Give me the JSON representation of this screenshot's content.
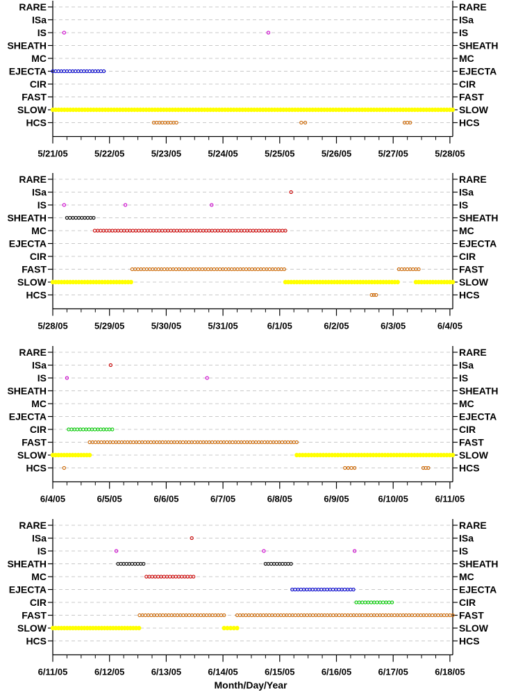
{
  "chart_data": {
    "type": "scatter",
    "xlabel": "Month/Day/Year",
    "categories": [
      "RARE",
      "ISa",
      "IS",
      "SHEATH",
      "MC",
      "EJECTA",
      "CIR",
      "FAST",
      "SLOW",
      "HCS"
    ],
    "colors": {
      "ISa": "#cc0000",
      "IS": "#cc00cc",
      "SHEATH": "#000000",
      "MC": "#cc0000",
      "EJECTA": "#0000cc",
      "CIR": "#00cc00",
      "FAST": "#cc6600",
      "SLOW": "#ffff00",
      "HCS": "#cc6600"
    },
    "panels": [
      {
        "x_ticks": [
          "5/21/05",
          "5/22/05",
          "5/23/05",
          "5/24/05",
          "5/25/05",
          "5/26/05",
          "5/27/05",
          "5/28/05"
        ],
        "xlim": [
          0,
          7.05
        ],
        "series": [
          {
            "category": "IS",
            "segments": [
              [
                0.2,
                0.2
              ],
              [
                3.8,
                3.8
              ]
            ]
          },
          {
            "category": "EJECTA",
            "segments": [
              [
                0.0,
                0.9
              ]
            ]
          },
          {
            "category": "SLOW",
            "segments": [
              [
                0.0,
                7.05
              ]
            ]
          },
          {
            "category": "HCS",
            "segments": [
              [
                1.78,
                2.18
              ],
              [
                4.38,
                4.45
              ],
              [
                6.2,
                6.3
              ]
            ]
          }
        ]
      },
      {
        "x_ticks": [
          "5/28/05",
          "5/29/05",
          "5/30/05",
          "5/31/05",
          "6/1/05",
          "6/2/05",
          "6/3/05",
          "6/4/05"
        ],
        "xlim": [
          0,
          7.05
        ],
        "series": [
          {
            "category": "ISa",
            "segments": [
              [
                4.2,
                4.2
              ]
            ]
          },
          {
            "category": "IS",
            "segments": [
              [
                0.2,
                0.2
              ],
              [
                1.28,
                1.28
              ],
              [
                2.8,
                2.8
              ]
            ]
          },
          {
            "category": "SHEATH",
            "segments": [
              [
                0.25,
                0.72
              ]
            ]
          },
          {
            "category": "MC",
            "segments": [
              [
                0.74,
                4.1
              ]
            ]
          },
          {
            "category": "FAST",
            "segments": [
              [
                1.4,
                4.08
              ],
              [
                6.1,
                6.45
              ]
            ]
          },
          {
            "category": "SLOW",
            "segments": [
              [
                0.0,
                1.38
              ],
              [
                4.1,
                6.08
              ],
              [
                6.4,
                7.05
              ]
            ]
          },
          {
            "category": "HCS",
            "segments": [
              [
                5.62,
                5.7
              ]
            ]
          }
        ]
      },
      {
        "x_ticks": [
          "6/4/05",
          "6/5/05",
          "6/6/05",
          "6/7/05",
          "6/8/05",
          "6/9/05",
          "6/10/05",
          "6/11/05"
        ],
        "xlim": [
          0,
          7.05
        ],
        "series": [
          {
            "category": "ISa",
            "segments": [
              [
                1.02,
                1.02
              ]
            ]
          },
          {
            "category": "IS",
            "segments": [
              [
                0.25,
                0.25
              ],
              [
                2.72,
                2.72
              ]
            ]
          },
          {
            "category": "CIR",
            "segments": [
              [
                0.28,
                1.05
              ]
            ]
          },
          {
            "category": "FAST",
            "segments": [
              [
                0.65,
                4.3
              ]
            ]
          },
          {
            "category": "SLOW",
            "segments": [
              [
                0.0,
                0.65
              ],
              [
                4.3,
                7.05
              ]
            ]
          },
          {
            "category": "HCS",
            "segments": [
              [
                0.2,
                0.2
              ],
              [
                5.15,
                5.32
              ],
              [
                6.53,
                6.62
              ]
            ]
          }
        ]
      },
      {
        "x_ticks": [
          "6/11/05",
          "6/12/05",
          "6/13/05",
          "6/14/05",
          "6/15/05",
          "6/16/05",
          "6/17/05",
          "6/18/05"
        ],
        "xlim": [
          0,
          7.05
        ],
        "series": [
          {
            "category": "ISa",
            "segments": [
              [
                2.45,
                2.45
              ]
            ]
          },
          {
            "category": "IS",
            "segments": [
              [
                1.12,
                1.12
              ],
              [
                3.72,
                3.72
              ],
              [
                5.32,
                5.32
              ]
            ]
          },
          {
            "category": "SHEATH",
            "segments": [
              [
                1.15,
                1.6
              ],
              [
                3.75,
                4.2
              ]
            ]
          },
          {
            "category": "MC",
            "segments": [
              [
                1.65,
                2.48
              ]
            ]
          },
          {
            "category": "EJECTA",
            "segments": [
              [
                4.22,
                5.3
              ]
            ]
          },
          {
            "category": "CIR",
            "segments": [
              [
                5.35,
                5.98
              ]
            ]
          },
          {
            "category": "FAST",
            "segments": [
              [
                1.53,
                3.02
              ],
              [
                3.25,
                7.05
              ]
            ]
          },
          {
            "category": "SLOW",
            "segments": [
              [
                0.0,
                1.52
              ],
              [
                3.02,
                3.25
              ]
            ]
          }
        ]
      }
    ]
  }
}
